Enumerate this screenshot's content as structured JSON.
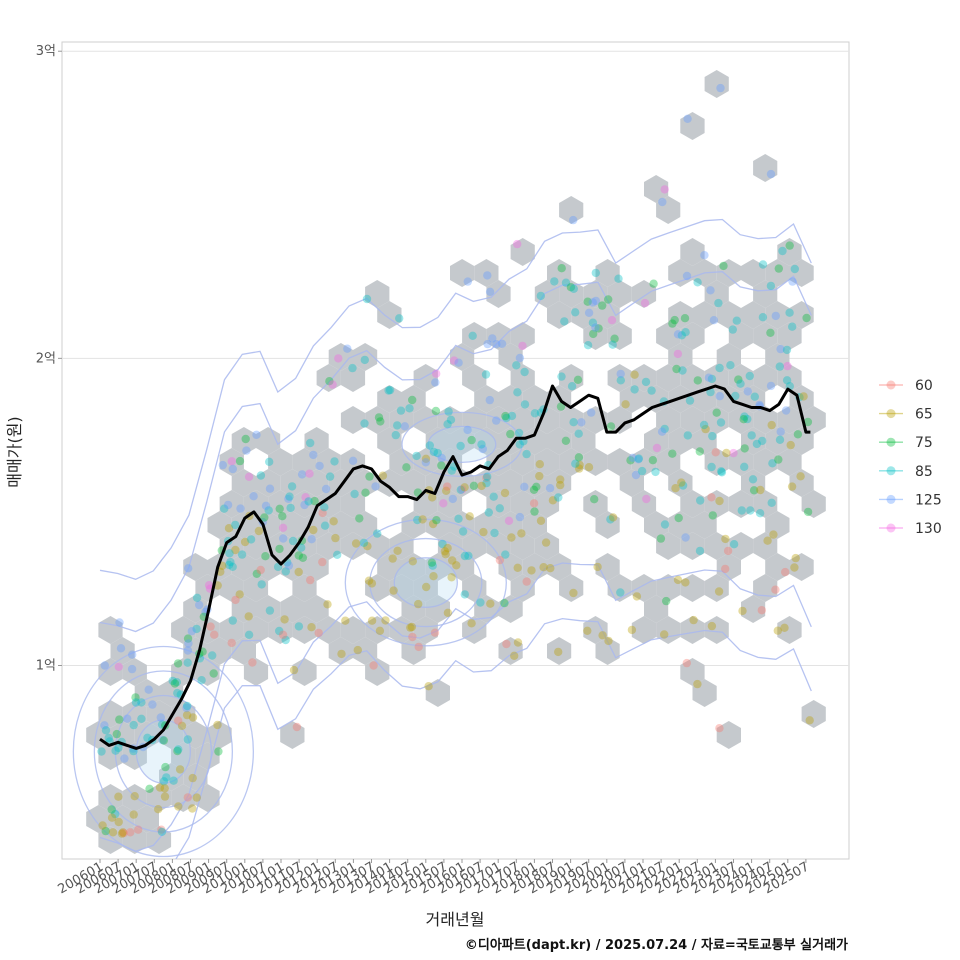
{
  "chart_data": {
    "type": "scatter",
    "xlabel": "거래년월",
    "ylabel": "매매가(원)",
    "ylim": [
      0.37,
      3.03
    ],
    "y_ticks": [
      {
        "value": 1,
        "label": "1억"
      },
      {
        "value": 2,
        "label": "2억"
      },
      {
        "value": 3,
        "label": "3억"
      }
    ],
    "x_ticks": [
      "200601",
      "200607",
      "200701",
      "200707",
      "200801",
      "200807",
      "200901",
      "200907",
      "201001",
      "201007",
      "201101",
      "201107",
      "201201",
      "201207",
      "201301",
      "201307",
      "201401",
      "201407",
      "201501",
      "201507",
      "201601",
      "201607",
      "201701",
      "201707",
      "201801",
      "201807",
      "201901",
      "201907",
      "202001",
      "202007",
      "202101",
      "202107",
      "202201",
      "202207",
      "202301",
      "202307",
      "202401",
      "202407",
      "202501",
      "202507"
    ],
    "legend": {
      "placement": "right",
      "entries": [
        {
          "label": "60",
          "color": "#F8766D"
        },
        {
          "label": "65",
          "color": "#B79F00"
        },
        {
          "label": "75",
          "color": "#00BA38"
        },
        {
          "label": "85",
          "color": "#00BFC4"
        },
        {
          "label": "125",
          "color": "#619CFF"
        },
        {
          "label": "130",
          "color": "#F564E3"
        }
      ]
    },
    "trend_line": {
      "name": "median",
      "color": "#000000",
      "x": [
        0,
        0.5,
        1,
        1.5,
        2,
        2.5,
        3,
        3.5,
        4,
        4.5,
        5,
        5.5,
        6,
        6.5,
        7,
        7.5,
        8,
        8.5,
        9,
        9.5,
        10,
        10.5,
        11,
        11.5,
        12,
        12.5,
        13,
        13.5,
        14,
        14.5,
        15,
        15.5,
        16,
        16.5,
        17,
        17.5,
        18,
        18.5,
        19,
        19.5,
        20,
        20.5,
        21,
        21.5,
        22,
        22.5,
        23,
        23.5,
        24,
        24.5,
        25,
        25.5,
        26,
        26.5,
        27,
        27.5,
        28,
        28.5,
        29,
        29.5,
        30,
        30.5,
        31,
        31.5,
        32,
        32.5,
        33,
        33.5,
        34,
        34.5,
        35,
        35.5,
        36,
        36.5,
        37,
        37.5,
        38,
        38.5,
        39,
        39.25
      ],
      "y": [
        0.76,
        0.74,
        0.75,
        0.74,
        0.73,
        0.74,
        0.76,
        0.79,
        0.84,
        0.89,
        0.95,
        1.05,
        1.18,
        1.32,
        1.4,
        1.42,
        1.48,
        1.5,
        1.46,
        1.36,
        1.33,
        1.36,
        1.4,
        1.45,
        1.52,
        1.54,
        1.56,
        1.6,
        1.64,
        1.65,
        1.64,
        1.6,
        1.58,
        1.55,
        1.55,
        1.54,
        1.57,
        1.56,
        1.63,
        1.68,
        1.62,
        1.63,
        1.65,
        1.64,
        1.68,
        1.7,
        1.74,
        1.74,
        1.75,
        1.82,
        1.91,
        1.86,
        1.84,
        1.86,
        1.88,
        1.87,
        1.76,
        1.76,
        1.79,
        1.8,
        1.82,
        1.84,
        1.85,
        1.86,
        1.87,
        1.88,
        1.89,
        1.9,
        1.91,
        1.9,
        1.86,
        1.85,
        1.84,
        1.84,
        1.83,
        1.85,
        1.9,
        1.88,
        1.76,
        1.76
      ]
    },
    "transactions_sample": [
      {
        "date": "200601",
        "area": "125",
        "price": 1.0
      },
      {
        "date": "200601",
        "area": "85",
        "price": 0.72
      },
      {
        "date": "200607",
        "area": "125",
        "price": 1.14
      },
      {
        "date": "200701",
        "area": "85",
        "price": 0.88
      },
      {
        "date": "200707",
        "area": "65",
        "price": 0.6
      },
      {
        "date": "200801",
        "area": "85",
        "price": 0.91
      },
      {
        "date": "200807",
        "area": "65",
        "price": 0.57
      },
      {
        "date": "200901",
        "area": "75",
        "price": 0.72
      },
      {
        "date": "200901",
        "area": "130",
        "price": 1.25
      },
      {
        "date": "201001",
        "area": "85",
        "price": 1.1
      },
      {
        "date": "201007",
        "area": "125",
        "price": 1.52
      },
      {
        "date": "201101",
        "area": "60",
        "price": 1.1
      },
      {
        "date": "201101",
        "area": "85",
        "price": 1.55
      },
      {
        "date": "201201",
        "area": "125",
        "price": 1.65
      },
      {
        "date": "201207",
        "area": "130",
        "price": 2.0
      },
      {
        "date": "201301",
        "area": "65",
        "price": 1.05
      },
      {
        "date": "201307",
        "area": "60",
        "price": 1.0
      },
      {
        "date": "201401",
        "area": "85",
        "price": 1.75
      },
      {
        "date": "201407",
        "area": "65",
        "price": 1.2
      },
      {
        "date": "201501",
        "area": "130",
        "price": 1.95
      },
      {
        "date": "201507",
        "area": "85",
        "price": 1.8
      },
      {
        "date": "201601",
        "area": "125",
        "price": 2.25
      },
      {
        "date": "201607",
        "area": "125",
        "price": 2.27
      },
      {
        "date": "201701",
        "area": "60",
        "price": 1.07
      },
      {
        "date": "201707",
        "area": "85",
        "price": 1.85
      },
      {
        "date": "201801",
        "area": "65",
        "price": 1.32
      },
      {
        "date": "201901",
        "area": "125",
        "price": 2.45
      },
      {
        "date": "201907",
        "area": "125",
        "price": 2.1
      },
      {
        "date": "202001",
        "area": "65",
        "price": 1.08
      },
      {
        "date": "202101",
        "area": "130",
        "price": 2.18
      },
      {
        "date": "202107",
        "area": "130",
        "price": 2.55
      },
      {
        "date": "202201",
        "area": "125",
        "price": 2.78
      },
      {
        "date": "202301",
        "area": "125",
        "price": 2.88
      },
      {
        "date": "202401",
        "area": "60",
        "price": 1.18
      },
      {
        "date": "202407",
        "area": "125",
        "price": 2.6
      },
      {
        "date": "202501",
        "area": "125",
        "price": 2.25
      },
      {
        "date": "202507",
        "area": "75",
        "price": 1.5
      }
    ]
  },
  "credit": "©디아파트(dapt.kr) / 2025.07.24 / 자료=국토교통부 실거래가"
}
